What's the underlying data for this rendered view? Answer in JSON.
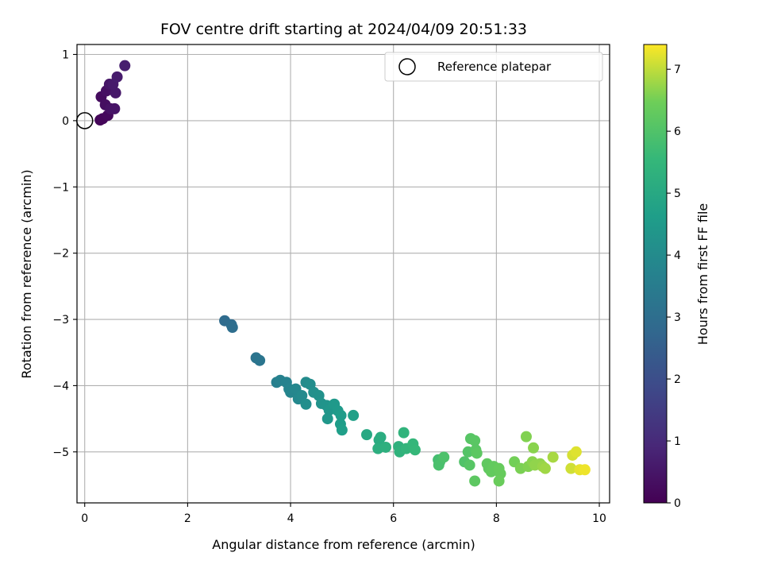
{
  "chart_data": {
    "type": "scatter",
    "title": "FOV centre drift starting at 2024/04/09 20:51:33",
    "xlabel": "Angular distance from reference (arcmin)",
    "ylabel": "Rotation from reference (arcmin)",
    "xlim": [
      -0.15,
      10.2
    ],
    "ylim": [
      -5.77,
      1.15
    ],
    "xticks": [
      0,
      2,
      4,
      6,
      8,
      10
    ],
    "yticks": [
      1,
      0,
      -1,
      -2,
      -3,
      -4,
      -5
    ],
    "xtick_labels": [
      "0",
      "2",
      "4",
      "6",
      "8",
      "10"
    ],
    "ytick_labels": [
      "1",
      "0",
      "−1",
      "−2",
      "−3",
      "−4",
      "−5"
    ],
    "grid": true,
    "legend": {
      "position": "upper-right",
      "entries": [
        {
          "label": "Reference platepar",
          "marker": "open-circle"
        }
      ]
    },
    "colorbar": {
      "label": "Hours from first FF file",
      "colormap": "viridis",
      "range": [
        0,
        7.4
      ],
      "ticks": [
        0,
        1,
        2,
        3,
        4,
        5,
        6,
        7
      ],
      "tick_labels": [
        "0",
        "1",
        "2",
        "3",
        "4",
        "5",
        "6",
        "7"
      ]
    },
    "reference_point": {
      "x": 0,
      "y": 0
    },
    "points": [
      {
        "x": 0.3,
        "y": 0.01,
        "c": 0.1
      },
      {
        "x": 0.35,
        "y": 0.03,
        "c": 0.15
      },
      {
        "x": 0.45,
        "y": 0.08,
        "c": 0.2
      },
      {
        "x": 0.32,
        "y": 0.36,
        "c": 0.25
      },
      {
        "x": 0.4,
        "y": 0.24,
        "c": 0.3
      },
      {
        "x": 0.42,
        "y": 0.45,
        "c": 0.35
      },
      {
        "x": 0.5,
        "y": 0.18,
        "c": 0.4
      },
      {
        "x": 0.58,
        "y": 0.18,
        "c": 0.45
      },
      {
        "x": 0.48,
        "y": 0.55,
        "c": 0.5
      },
      {
        "x": 0.6,
        "y": 0.42,
        "c": 0.55
      },
      {
        "x": 0.55,
        "y": 0.55,
        "c": 0.6
      },
      {
        "x": 0.63,
        "y": 0.66,
        "c": 0.65
      },
      {
        "x": 0.78,
        "y": 0.83,
        "c": 0.7
      },
      {
        "x": 2.72,
        "y": -3.02,
        "c": 2.9
      },
      {
        "x": 2.85,
        "y": -3.08,
        "c": 2.95
      },
      {
        "x": 2.87,
        "y": -3.12,
        "c": 3.0
      },
      {
        "x": 3.33,
        "y": -3.58,
        "c": 3.2
      },
      {
        "x": 3.4,
        "y": -3.62,
        "c": 3.25
      },
      {
        "x": 3.73,
        "y": -3.95,
        "c": 3.6
      },
      {
        "x": 3.8,
        "y": -3.92,
        "c": 3.65
      },
      {
        "x": 3.92,
        "y": -3.95,
        "c": 3.7
      },
      {
        "x": 3.97,
        "y": -4.05,
        "c": 3.75
      },
      {
        "x": 4.0,
        "y": -4.1,
        "c": 3.8
      },
      {
        "x": 4.1,
        "y": -4.05,
        "c": 3.85
      },
      {
        "x": 4.15,
        "y": -4.2,
        "c": 3.9
      },
      {
        "x": 4.22,
        "y": -4.15,
        "c": 3.95
      },
      {
        "x": 4.3,
        "y": -3.95,
        "c": 4.0
      },
      {
        "x": 4.38,
        "y": -3.98,
        "c": 4.05
      },
      {
        "x": 4.3,
        "y": -4.28,
        "c": 4.1
      },
      {
        "x": 4.45,
        "y": -4.1,
        "c": 4.15
      },
      {
        "x": 4.55,
        "y": -4.15,
        "c": 4.2
      },
      {
        "x": 4.6,
        "y": -4.27,
        "c": 4.25
      },
      {
        "x": 4.7,
        "y": -4.3,
        "c": 4.3
      },
      {
        "x": 4.75,
        "y": -4.37,
        "c": 4.35
      },
      {
        "x": 4.72,
        "y": -4.5,
        "c": 4.4
      },
      {
        "x": 4.85,
        "y": -4.28,
        "c": 4.45
      },
      {
        "x": 4.92,
        "y": -4.38,
        "c": 4.5
      },
      {
        "x": 4.98,
        "y": -4.45,
        "c": 4.55
      },
      {
        "x": 4.97,
        "y": -4.58,
        "c": 4.6
      },
      {
        "x": 5.0,
        "y": -4.67,
        "c": 4.65
      },
      {
        "x": 5.22,
        "y": -4.45,
        "c": 4.7
      },
      {
        "x": 5.48,
        "y": -4.74,
        "c": 5.0
      },
      {
        "x": 5.72,
        "y": -4.82,
        "c": 5.1
      },
      {
        "x": 5.75,
        "y": -4.78,
        "c": 5.15
      },
      {
        "x": 5.7,
        "y": -4.95,
        "c": 5.2
      },
      {
        "x": 5.85,
        "y": -4.93,
        "c": 5.25
      },
      {
        "x": 6.1,
        "y": -4.92,
        "c": 5.3
      },
      {
        "x": 6.12,
        "y": -5.0,
        "c": 5.35
      },
      {
        "x": 6.2,
        "y": -4.71,
        "c": 5.4
      },
      {
        "x": 6.25,
        "y": -4.95,
        "c": 5.45
      },
      {
        "x": 6.38,
        "y": -4.88,
        "c": 5.5
      },
      {
        "x": 6.42,
        "y": -4.97,
        "c": 5.55
      },
      {
        "x": 6.87,
        "y": -5.12,
        "c": 5.8
      },
      {
        "x": 6.9,
        "y": -5.15,
        "c": 5.85
      },
      {
        "x": 6.88,
        "y": -5.2,
        "c": 5.9
      },
      {
        "x": 6.98,
        "y": -5.08,
        "c": 5.95
      },
      {
        "x": 7.38,
        "y": -5.15,
        "c": 6.0
      },
      {
        "x": 7.45,
        "y": -5.0,
        "c": 6.05
      },
      {
        "x": 7.48,
        "y": -5.2,
        "c": 6.1
      },
      {
        "x": 7.5,
        "y": -4.8,
        "c": 6.1
      },
      {
        "x": 7.58,
        "y": -4.83,
        "c": 6.15
      },
      {
        "x": 7.6,
        "y": -4.97,
        "c": 6.15
      },
      {
        "x": 7.62,
        "y": -5.02,
        "c": 6.2
      },
      {
        "x": 7.58,
        "y": -5.44,
        "c": 6.2
      },
      {
        "x": 7.82,
        "y": -5.18,
        "c": 6.25
      },
      {
        "x": 7.85,
        "y": -5.25,
        "c": 6.25
      },
      {
        "x": 7.9,
        "y": -5.3,
        "c": 6.3
      },
      {
        "x": 7.95,
        "y": -5.22,
        "c": 6.3
      },
      {
        "x": 8.05,
        "y": -5.25,
        "c": 6.35
      },
      {
        "x": 8.08,
        "y": -5.33,
        "c": 6.35
      },
      {
        "x": 8.05,
        "y": -5.44,
        "c": 6.4
      },
      {
        "x": 8.35,
        "y": -5.15,
        "c": 6.5
      },
      {
        "x": 8.47,
        "y": -5.25,
        "c": 6.55
      },
      {
        "x": 8.58,
        "y": -4.77,
        "c": 6.6
      },
      {
        "x": 8.62,
        "y": -5.22,
        "c": 6.6
      },
      {
        "x": 8.7,
        "y": -5.15,
        "c": 6.65
      },
      {
        "x": 8.72,
        "y": -4.94,
        "c": 6.65
      },
      {
        "x": 8.75,
        "y": -5.2,
        "c": 6.7
      },
      {
        "x": 8.85,
        "y": -5.18,
        "c": 6.7
      },
      {
        "x": 8.9,
        "y": -5.22,
        "c": 6.75
      },
      {
        "x": 8.95,
        "y": -5.25,
        "c": 6.8
      },
      {
        "x": 9.1,
        "y": -5.08,
        "c": 6.85
      },
      {
        "x": 9.45,
        "y": -5.25,
        "c": 7.1
      },
      {
        "x": 9.48,
        "y": -5.05,
        "c": 7.15
      },
      {
        "x": 9.55,
        "y": -5.0,
        "c": 7.2
      },
      {
        "x": 9.62,
        "y": -5.27,
        "c": 7.25
      },
      {
        "x": 9.72,
        "y": -5.27,
        "c": 7.3
      }
    ]
  }
}
